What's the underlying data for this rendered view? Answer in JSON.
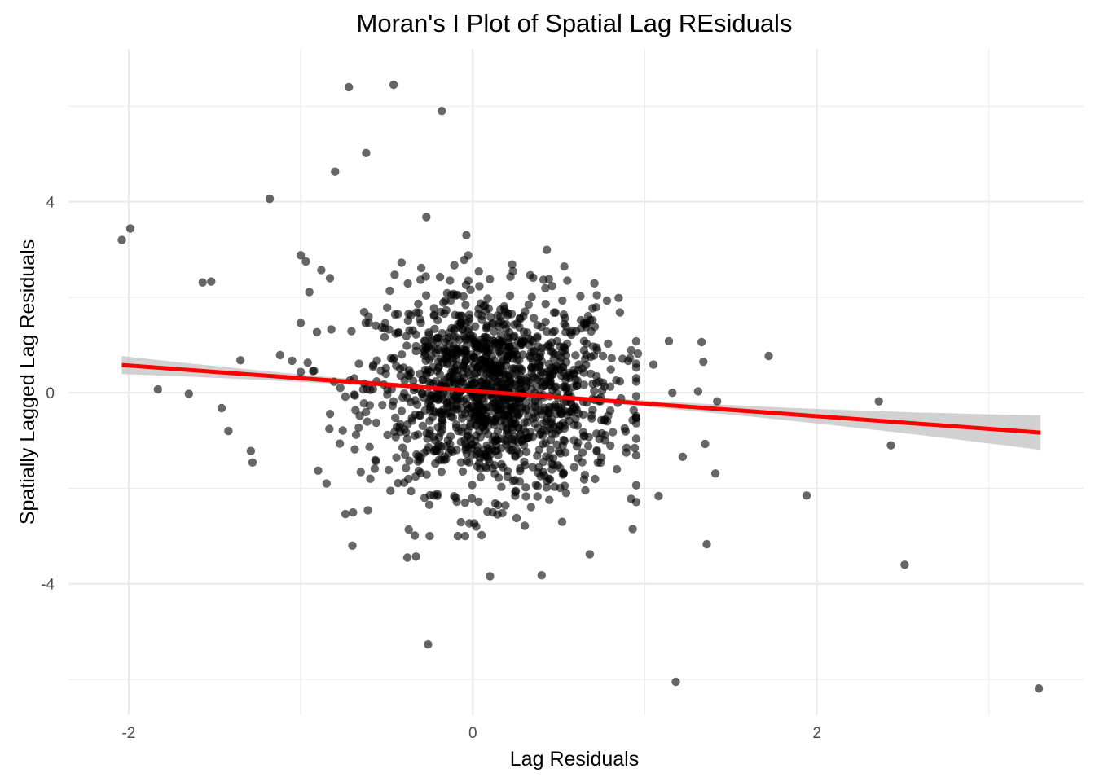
{
  "chart_data": {
    "type": "scatter",
    "title": "Moran's I Plot of Spatial Lag REsiduals",
    "xlabel": "Lag Residuals",
    "ylabel": "Spatially Lagged Lag Residuals",
    "xlim": [
      -2.35,
      3.55
    ],
    "ylim": [
      -6.75,
      7.2
    ],
    "x_ticks": [
      -2,
      0,
      2
    ],
    "y_ticks": [
      -4,
      0,
      4
    ],
    "x_tick_labels": [
      "-2",
      "0",
      "2"
    ],
    "y_tick_labels": [
      "-4",
      "0",
      "4"
    ],
    "grid": true,
    "legend": "none",
    "point_color": "#000000",
    "point_opacity": 0.6,
    "fit_line": {
      "method": "linear",
      "color": "#ff0000",
      "x_range": [
        -2.04,
        3.3
      ],
      "intercept": 0.04,
      "slope": -0.265,
      "ci_color": "#bebebe"
    },
    "cluster": {
      "n": 1400,
      "x_mean": 0.12,
      "x_sd": 0.36,
      "y_mean": 0.0,
      "y_sd": 1.05
    },
    "points": [
      [
        -2.04,
        3.2
      ],
      [
        -1.99,
        3.44
      ],
      [
        -1.83,
        0.07
      ],
      [
        -1.65,
        -0.02
      ],
      [
        -1.57,
        2.31
      ],
      [
        -1.52,
        2.33
      ],
      [
        -1.46,
        -0.32
      ],
      [
        -1.42,
        -0.8
      ],
      [
        -1.35,
        0.68
      ],
      [
        -1.29,
        -1.22
      ],
      [
        -1.28,
        -1.46
      ],
      [
        -1.18,
        4.06
      ],
      [
        -1.12,
        0.79
      ],
      [
        -1.05,
        0.67
      ],
      [
        -1.0,
        2.88
      ],
      [
        -0.97,
        2.75
      ],
      [
        -0.95,
        2.11
      ],
      [
        -0.88,
        2.57
      ],
      [
        -0.83,
        2.4
      ],
      [
        -0.85,
        -1.9
      ],
      [
        -0.8,
        4.63
      ],
      [
        -0.74,
        -2.54
      ],
      [
        -0.72,
        6.4
      ],
      [
        -0.7,
        -3.2
      ],
      [
        -0.62,
        5.02
      ],
      [
        -0.61,
        -2.46
      ],
      [
        -0.57,
        -1.59
      ],
      [
        -0.46,
        6.45
      ],
      [
        -0.38,
        -3.45
      ],
      [
        -0.33,
        -3.43
      ],
      [
        -0.27,
        3.68
      ],
      [
        -0.26,
        -5.27
      ],
      [
        -0.18,
        5.9
      ],
      [
        -0.09,
        2.05
      ],
      [
        0.02,
        -2.8
      ],
      [
        0.1,
        -3.84
      ],
      [
        0.4,
        -3.82
      ],
      [
        0.55,
        2.35
      ],
      [
        0.68,
        -3.38
      ],
      [
        0.78,
        1.93
      ],
      [
        0.92,
        -2.22
      ],
      [
        0.96,
        0.82
      ],
      [
        1.05,
        0.59
      ],
      [
        1.08,
        -2.16
      ],
      [
        1.14,
        1.08
      ],
      [
        1.16,
        0.0
      ],
      [
        1.18,
        -6.05
      ],
      [
        1.22,
        -1.34
      ],
      [
        1.31,
        0.03
      ],
      [
        1.33,
        1.06
      ],
      [
        1.34,
        0.65
      ],
      [
        1.35,
        -1.07
      ],
      [
        1.36,
        -3.17
      ],
      [
        1.41,
        -1.69
      ],
      [
        1.42,
        -0.18
      ],
      [
        1.72,
        0.77
      ],
      [
        1.94,
        -2.15
      ],
      [
        2.36,
        -0.18
      ],
      [
        2.43,
        -1.1
      ],
      [
        2.51,
        -3.6
      ],
      [
        3.29,
        -6.19
      ]
    ]
  }
}
